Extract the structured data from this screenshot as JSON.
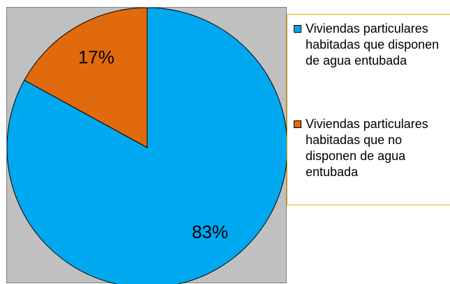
{
  "chart_data": {
    "type": "pie",
    "slices": [
      {
        "label": "Viviendas particulares habitadas que disponen de agua entubada",
        "value": 83,
        "value_label": "83%",
        "color": "#00a8f0"
      },
      {
        "label": "Viviendas particulares habitadas que no disponen de agua entubada",
        "value": 17,
        "value_label": "17%",
        "color": "#e06a0c"
      }
    ],
    "start_angle_deg": 0,
    "direction": "clockwise",
    "background_color": "#c0c0c0",
    "legend_border_color": "#f0b000",
    "legend_position": "right"
  }
}
